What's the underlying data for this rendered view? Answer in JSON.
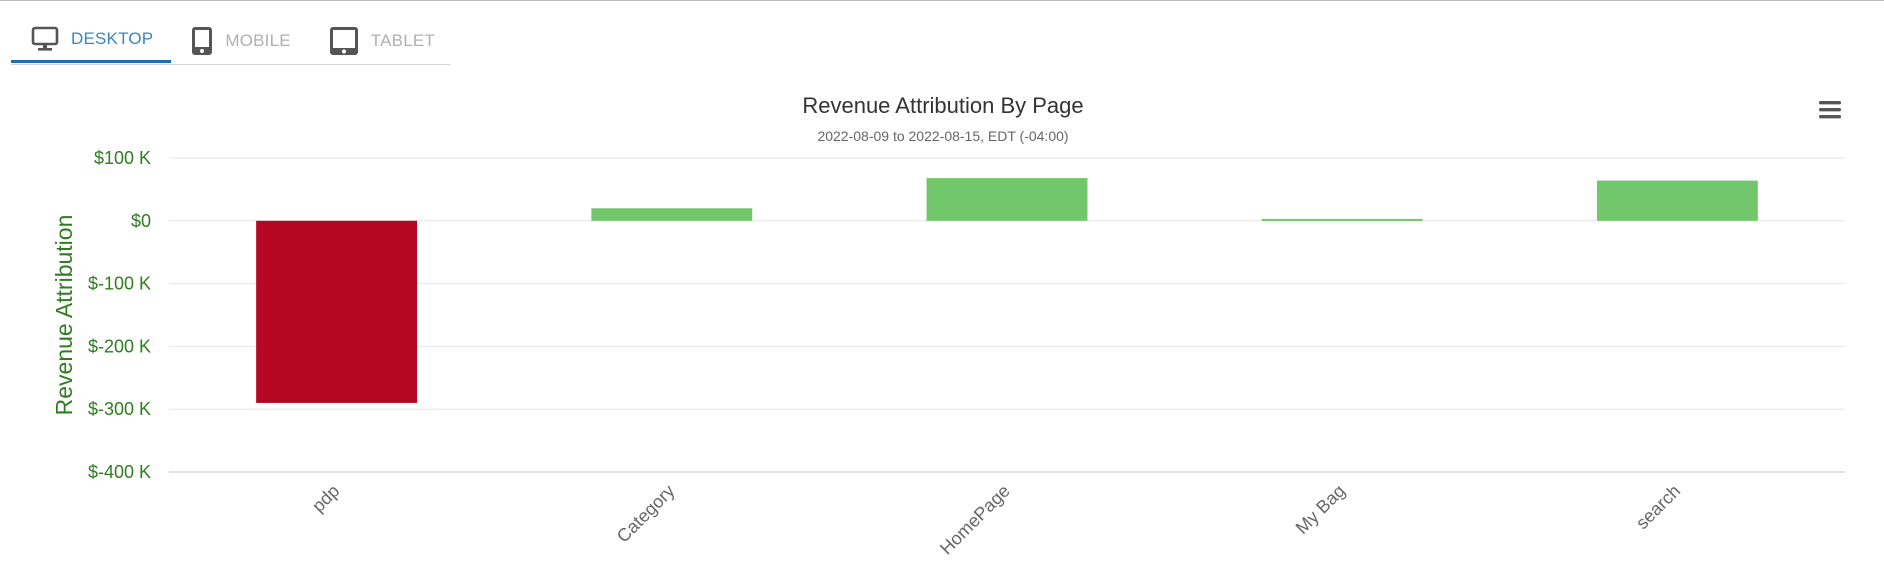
{
  "tabs": [
    {
      "label": "DESKTOP",
      "icon": "desktop-icon",
      "active": true
    },
    {
      "label": "MOBILE",
      "icon": "mobile-icon",
      "active": false
    },
    {
      "label": "TABLET",
      "icon": "tablet-icon",
      "active": false
    }
  ],
  "menu": {
    "icon": "hamburger-menu-icon"
  },
  "colors": {
    "positive": "#72c66b",
    "negative": "#b50622",
    "axis_text": "#2e7d1f",
    "active_tab": "#1f6fb5",
    "inactive_tab": "#b0b0b0"
  },
  "chart_data": {
    "type": "bar",
    "title": "Revenue Attribution By Page",
    "subtitle": "2022-08-09 to 2022-08-15, EDT (-04:00)",
    "ylabel": "Revenue Attribution",
    "xlabel": "",
    "categories": [
      "pdp",
      "Category",
      "HomePage",
      "My Bag",
      "search"
    ],
    "values": [
      -290000,
      20000,
      68000,
      3000,
      64000
    ],
    "ylim": [
      -400000,
      100000
    ],
    "yticks": [
      100000,
      0,
      -100000,
      -200000,
      -300000,
      -400000
    ],
    "ytick_labels": [
      "$100 K",
      "$0",
      "$-100 K",
      "$-200 K",
      "$-300 K",
      "$-400 K"
    ],
    "grid": true,
    "legend": "none"
  }
}
